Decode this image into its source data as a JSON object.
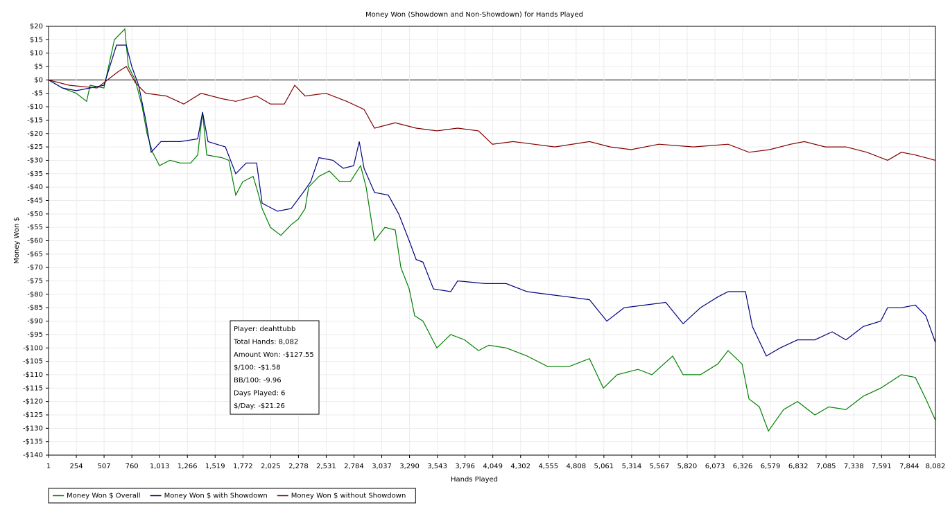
{
  "chart_data": {
    "type": "line",
    "title": "Money Won (Showdown and Non-Showdown) for Hands Played",
    "x_label": "Hands Played",
    "y_label": "Money Won $",
    "xlim": [
      1,
      8082
    ],
    "ylim": [
      -140,
      20
    ],
    "grid": true,
    "legend": "bottom-left",
    "xticks": [
      1,
      254,
      507,
      760,
      {
        "value": 1013,
        "label": "1,013"
      },
      {
        "value": 1266,
        "label": "1,266"
      },
      {
        "value": 1519,
        "label": "1,519"
      },
      {
        "value": 1772,
        "label": "1,772"
      },
      {
        "value": 2025,
        "label": "2,025"
      },
      {
        "value": 2278,
        "label": "2,278"
      },
      {
        "value": 2531,
        "label": "2,531"
      },
      {
        "value": 2784,
        "label": "2,784"
      },
      {
        "value": 3037,
        "label": "3,037"
      },
      {
        "value": 3290,
        "label": "3,290"
      },
      {
        "value": 3543,
        "label": "3,543"
      },
      {
        "value": 3796,
        "label": "3,796"
      },
      {
        "value": 4049,
        "label": "4,049"
      },
      {
        "value": 4302,
        "label": "4,302"
      },
      {
        "value": 4555,
        "label": "4,555"
      },
      {
        "value": 4808,
        "label": "4,808"
      },
      {
        "value": 5061,
        "label": "5,061"
      },
      {
        "value": 5314,
        "label": "5,314"
      },
      {
        "value": 5567,
        "label": "5,567"
      },
      {
        "value": 5820,
        "label": "5,820"
      },
      {
        "value": 6073,
        "label": "6,073"
      },
      {
        "value": 6326,
        "label": "6,326"
      },
      {
        "value": 6579,
        "label": "6,579"
      },
      {
        "value": 6832,
        "label": "6,832"
      },
      {
        "value": 7085,
        "label": "7,085"
      },
      {
        "value": 7338,
        "label": "7,338"
      },
      {
        "value": 7591,
        "label": "7,591"
      },
      {
        "value": 7844,
        "label": "7,844"
      },
      {
        "value": 8082,
        "label": "8,082"
      }
    ],
    "yticks": [
      {
        "value": 20,
        "label": "$20"
      },
      {
        "value": 15,
        "label": "$15"
      },
      {
        "value": 10,
        "label": "$10"
      },
      {
        "value": 5,
        "label": "$5"
      },
      {
        "value": 0,
        "label": "$0"
      },
      {
        "value": -5,
        "label": "-$5"
      },
      {
        "value": -10,
        "label": "-$10"
      },
      {
        "value": -15,
        "label": "-$15"
      },
      {
        "value": -20,
        "label": "-$20"
      },
      {
        "value": -25,
        "label": "-$25"
      },
      {
        "value": -30,
        "label": "-$30"
      },
      {
        "value": -35,
        "label": "-$35"
      },
      {
        "value": -40,
        "label": "-$40"
      },
      {
        "value": -45,
        "label": "-$45"
      },
      {
        "value": -50,
        "label": "-$50"
      },
      {
        "value": -55,
        "label": "-$55"
      },
      {
        "value": -60,
        "label": "-$60"
      },
      {
        "value": -65,
        "label": "-$65"
      },
      {
        "value": -70,
        "label": "-$70"
      },
      {
        "value": -75,
        "label": "-$75"
      },
      {
        "value": -80,
        "label": "-$80"
      },
      {
        "value": -85,
        "label": "-$85"
      },
      {
        "value": -90,
        "label": "-$90"
      },
      {
        "value": -95,
        "label": "-$95"
      },
      {
        "value": -100,
        "label": "-$100"
      },
      {
        "value": -105,
        "label": "-$105"
      },
      {
        "value": -110,
        "label": "-$110"
      },
      {
        "value": -115,
        "label": "-$115"
      },
      {
        "value": -120,
        "label": "-$120"
      },
      {
        "value": -125,
        "label": "-$125"
      },
      {
        "value": -130,
        "label": "-$130"
      },
      {
        "value": -135,
        "label": "-$135"
      },
      {
        "value": -140,
        "label": "-$140"
      }
    ],
    "series": [
      {
        "name": "Money Won $ Overall",
        "color": "#008000",
        "x": [
          1,
          127,
          254,
          348,
          380,
          506,
          601,
          696,
          728,
          791,
          854,
          898,
          949,
          1012,
          1107,
          1202,
          1296,
          1360,
          1404,
          1442,
          1581,
          1644,
          1707,
          1770,
          1865,
          1909,
          1947,
          2023,
          2118,
          2212,
          2276,
          2339,
          2371,
          2465,
          2560,
          2655,
          2750,
          2844,
          2895,
          2971,
          3066,
          3160,
          3211,
          3287,
          3337,
          3413,
          3476,
          3539,
          3665,
          3792,
          3918,
          4013,
          4171,
          4361,
          4550,
          4740,
          4930,
          5056,
          5182,
          5372,
          5499,
          5688,
          5783,
          5941,
          6099,
          6193,
          6320,
          6383,
          6478,
          6560,
          6699,
          6825,
          6983,
          7110,
          7267,
          7425,
          7583,
          7772,
          7899,
          7994,
          8082
        ],
        "values": [
          0,
          -3,
          -5,
          -8,
          -2,
          -3,
          15,
          19,
          5,
          0,
          -10,
          -20,
          -27,
          -32,
          -30,
          -31,
          -31,
          -28,
          -12,
          -28,
          -29,
          -30,
          -43,
          -38,
          -36,
          -42,
          -48,
          -55,
          -58,
          -54,
          -52,
          -48,
          -40,
          -36,
          -34,
          -38,
          -38,
          -32,
          -40,
          -60,
          -55,
          -56,
          -70,
          -78,
          -88,
          -90,
          -95,
          -100,
          -95,
          -97,
          -101,
          -99,
          -100,
          -103,
          -107,
          -107,
          -104,
          -115,
          -110,
          -108,
          -110,
          -103,
          -110,
          -110,
          -106,
          -101,
          -106,
          -119,
          -122,
          -131,
          -123,
          -120,
          -125,
          -122,
          -123,
          -118,
          -115,
          -110,
          -111,
          -119,
          -127
        ]
      },
      {
        "name": "Money Won $ with Showdown",
        "color": "#000080",
        "x": [
          1,
          127,
          254,
          380,
          506,
          620,
          709,
          759,
          822,
          886,
          936,
          1025,
          1202,
          1360,
          1404,
          1454,
          1612,
          1707,
          1802,
          1897,
          1947,
          2086,
          2212,
          2339,
          2389,
          2465,
          2592,
          2686,
          2781,
          2832,
          2876,
          2971,
          3097,
          3192,
          3287,
          3350,
          3413,
          3508,
          3665,
          3729,
          3982,
          4171,
          4361,
          4550,
          4740,
          4930,
          5088,
          5246,
          5435,
          5625,
          5783,
          5941,
          6099,
          6193,
          6351,
          6414,
          6541,
          6667,
          6825,
          6983,
          7141,
          7267,
          7425,
          7583,
          7646,
          7772,
          7899,
          7994,
          8082
        ],
        "values": [
          0,
          -3,
          -4,
          -3,
          -2,
          13,
          13,
          5,
          -2,
          -15,
          -27,
          -23,
          -23,
          -22,
          -12,
          -23,
          -25,
          -35,
          -31,
          -31,
          -46,
          -49,
          -48,
          -41,
          -38,
          -29,
          -30,
          -33,
          -32,
          -23,
          -33,
          -42,
          -43,
          -50,
          -60,
          -67,
          -68,
          -78,
          -79,
          -75,
          -76,
          -76,
          -79,
          -80,
          -81,
          -82,
          -90,
          -85,
          -84,
          -83,
          -91,
          -85,
          -81,
          -79,
          -79,
          -92,
          -103,
          -100,
          -97,
          -97,
          -94,
          -97,
          -92,
          -90,
          -85,
          -85,
          -84,
          -88,
          -98
        ]
      },
      {
        "name": "Money Won $ without Showdown",
        "color": "#800000",
        "x": [
          1,
          191,
          443,
          633,
          709,
          791,
          886,
          1075,
          1233,
          1391,
          1581,
          1707,
          1897,
          2023,
          2149,
          2244,
          2339,
          2528,
          2718,
          2876,
          2971,
          3160,
          3350,
          3539,
          3729,
          3918,
          4045,
          4234,
          4424,
          4614,
          4930,
          5119,
          5309,
          5562,
          5878,
          6193,
          6383,
          6572,
          6762,
          6888,
          7078,
          7267,
          7457,
          7646,
          7772,
          7899,
          8082
        ],
        "values": [
          0,
          -2,
          -3,
          3,
          5,
          -1,
          -5,
          -6,
          -9,
          -5,
          -7,
          -8,
          -6,
          -9,
          -9,
          -2,
          -6,
          -5,
          -8,
          -11,
          -18,
          -16,
          -18,
          -19,
          -18,
          -19,
          -24,
          -23,
          -24,
          -25,
          -23,
          -25,
          -26,
          -24,
          -25,
          -24,
          -27,
          -26,
          -24,
          -23,
          -25,
          -25,
          -27,
          -30,
          -27,
          -28,
          -30
        ]
      }
    ],
    "info_box": [
      "Player: deahttubb",
      "Total Hands: 8,082",
      "Amount Won: -$127.55",
      "$/100: -$1.58",
      "BB/100: -9.96",
      "Days Played: 6",
      "$/Day: -$21.26"
    ]
  }
}
